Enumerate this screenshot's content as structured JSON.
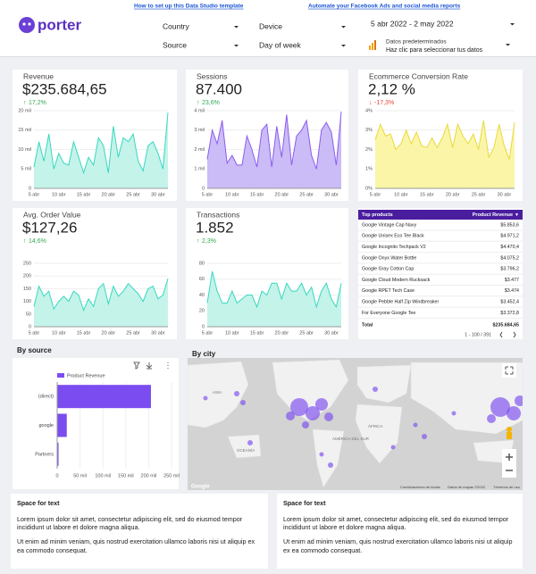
{
  "header": {
    "logo": "porter",
    "links": [
      "How to set up this Data Studio template",
      "Automate your Facebook Ads and social media reports"
    ],
    "filters": [
      "Country",
      "Device",
      "Source",
      "Day of week"
    ],
    "date_range": "5 abr 2022 - 2 may 2022",
    "data_source": [
      "Datos predeterminados",
      "Haz clic para seleccionar tus datos"
    ]
  },
  "chart_data": [
    {
      "type": "line",
      "title": "Revenue",
      "kpi": "$235.684,65",
      "delta": "17,2%",
      "delta_direction": "up",
      "color": "#35d9bf",
      "fill": "#c4f3ea",
      "categories": [
        "5 abr",
        null,
        null,
        null,
        null,
        "10 abr",
        null,
        null,
        null,
        null,
        "15 abr",
        null,
        null,
        null,
        null,
        "20 abr",
        null,
        null,
        null,
        null,
        "25 abr",
        null,
        null,
        null,
        null,
        "30 abr",
        null,
        null
      ],
      "values": [
        5500,
        12000,
        7000,
        14000,
        5000,
        9000,
        6500,
        6000,
        12000,
        8000,
        4000,
        8000,
        6000,
        13000,
        11000,
        4000,
        16000,
        8000,
        13000,
        12000,
        14000,
        7000,
        4500,
        11000,
        12000,
        9000,
        5000,
        19500
      ],
      "ylim": [
        0,
        20000
      ],
      "yticks": [
        0,
        {
          "value": 5000,
          "label": "5 mil"
        },
        {
          "value": 10000,
          "label": "10 mil"
        },
        {
          "value": 15000,
          "label": "15 mil"
        },
        {
          "value": 20000,
          "label": "20 mil"
        }
      ]
    },
    {
      "type": "line",
      "title": "Sessions",
      "kpi": "87.400",
      "delta": "23,6%",
      "delta_direction": "up",
      "color": "#8a5cf0",
      "fill": "#cbbbf6",
      "categories": [
        "5 abr",
        null,
        null,
        null,
        null,
        "10 abr",
        null,
        null,
        null,
        null,
        "15 abr",
        null,
        null,
        null,
        null,
        "20 abr",
        null,
        null,
        null,
        null,
        "25 abr",
        null,
        null,
        null,
        null,
        "30 abr",
        null,
        null
      ],
      "values": [
        1500,
        3000,
        2300,
        3500,
        1300,
        1700,
        1200,
        1200,
        2700,
        2000,
        1100,
        3000,
        3300,
        1100,
        3200,
        1600,
        3800,
        1200,
        2700,
        3000,
        3500,
        1700,
        1000,
        3000,
        3400,
        2900,
        1200,
        3950
      ],
      "ylim": [
        0,
        4000
      ],
      "yticks": [
        0,
        {
          "value": 1000,
          "label": "1 mil"
        },
        {
          "value": 2000,
          "label": "2 mil"
        },
        {
          "value": 3000,
          "label": "3 mil"
        },
        {
          "value": 4000,
          "label": "4 mil"
        }
      ]
    },
    {
      "type": "line",
      "title": "Ecommerce Conversion Rate",
      "kpi": "2,12 %",
      "delta": "-17,3%",
      "delta_direction": "down",
      "color": "#e8d93a",
      "fill": "#fbf5a8",
      "categories": [
        "5 abr",
        null,
        null,
        null,
        null,
        "10 abr",
        null,
        null,
        null,
        null,
        "15 abr",
        null,
        null,
        null,
        null,
        "20 abr",
        null,
        null,
        null,
        null,
        "25 abr",
        null,
        null,
        null,
        null,
        "30 abr",
        null,
        null
      ],
      "values": [
        2.5,
        3.3,
        2.7,
        2.8,
        2.0,
        2.3,
        3.0,
        2.3,
        2.9,
        2.2,
        2.1,
        2.6,
        2.1,
        2.6,
        3.3,
        2.1,
        3.3,
        2.7,
        2.3,
        2.8,
        2.0,
        3.5,
        1.6,
        2.1,
        3.3,
        2.2,
        1.5,
        3.4
      ],
      "ylim": [
        0,
        4
      ],
      "yticks": [
        {
          "value": 0,
          "label": "0%"
        },
        {
          "value": 1,
          "label": "1%"
        },
        {
          "value": 2,
          "label": "2%"
        },
        {
          "value": 3,
          "label": "3%"
        },
        {
          "value": 4,
          "label": "4%"
        }
      ]
    },
    {
      "type": "line",
      "title": "Avg. Order Value",
      "kpi": "$127,26",
      "delta": "14,6%",
      "delta_direction": "up",
      "color": "#35d9bf",
      "fill": "#c4f3ea",
      "categories": [
        "5 abr",
        null,
        null,
        null,
        null,
        "10 abr",
        null,
        null,
        null,
        null,
        "15 abr",
        null,
        null,
        null,
        null,
        "20 abr",
        null,
        null,
        null,
        null,
        "25 abr",
        null,
        null,
        null,
        null,
        "30 abr",
        null,
        null
      ],
      "values": [
        80,
        160,
        120,
        140,
        70,
        100,
        120,
        100,
        140,
        125,
        65,
        110,
        80,
        150,
        170,
        90,
        160,
        120,
        140,
        170,
        150,
        130,
        100,
        150,
        160,
        110,
        125,
        190
      ],
      "ylim": [
        0,
        250
      ],
      "yticks": [
        0,
        50,
        100,
        150,
        200,
        250
      ]
    },
    {
      "type": "line",
      "title": "Transactions",
      "kpi": "1.852",
      "delta": "2,3%",
      "delta_direction": "up",
      "color": "#35d9bf",
      "fill": "#c4f3ea",
      "categories": [
        "5 abr",
        null,
        null,
        null,
        null,
        "10 abr",
        null,
        null,
        null,
        null,
        "15 abr",
        null,
        null,
        null,
        null,
        "20 abr",
        null,
        null,
        null,
        null,
        "25 abr",
        null,
        null,
        null,
        null,
        "30 abr",
        null,
        null
      ],
      "values": [
        30,
        70,
        45,
        30,
        30,
        45,
        30,
        35,
        40,
        40,
        25,
        45,
        40,
        55,
        55,
        35,
        55,
        45,
        45,
        55,
        40,
        50,
        25,
        45,
        55,
        35,
        25,
        55
      ],
      "ylim": [
        0,
        80
      ],
      "yticks": [
        0,
        20,
        40,
        60,
        80
      ]
    },
    {
      "type": "bar",
      "title": "By source",
      "categories": [
        "(direct)",
        "google",
        "Partners"
      ],
      "series": [
        {
          "name": "Product Revenue",
          "color": "#7b4cf0",
          "values": [
            205000,
            21000,
            3000
          ]
        }
      ],
      "xlim": [
        0,
        250000
      ],
      "xticks": [
        0,
        {
          "value": 50000,
          "label": "50 mil"
        },
        {
          "value": 100000,
          "label": "100 mil"
        },
        {
          "value": 150000,
          "label": "150 mil"
        },
        {
          "value": 200000,
          "label": "200 mil"
        },
        {
          "value": 250000,
          "label": "250 mil"
        }
      ],
      "grid": true
    }
  ],
  "table": {
    "headers": [
      "Top products",
      "Product Revenue"
    ],
    "rows": [
      [
        "Google Vintage Cap Navy",
        "$5.853,6"
      ],
      [
        "Google Unisex Eco Tee Black",
        "$4.971,2"
      ],
      [
        "Google Incognito Techpack V2",
        "$4.470,4"
      ],
      [
        "Google Onyx Water Bottle",
        "$4.075,2"
      ],
      [
        "Google Gray Cotton Cap",
        "$3.796,2"
      ],
      [
        "Google Cloud Modern Rucksack",
        "$3.477"
      ],
      [
        "Google RPET Tech Case",
        "$3.474"
      ],
      [
        "Google Pebble Half Zip Windbreaker",
        "$3.452,4"
      ],
      [
        "For Everyone Google Tee",
        "$3.372,8"
      ]
    ],
    "total": [
      "Total",
      "$235.684,65"
    ],
    "pagination": "1 - 100 / 391"
  },
  "map": {
    "title": "By city",
    "labels": [
      "ASIA",
      "OCEANÍA",
      "AMÉRICA DEL SUR",
      "ÁFRICA"
    ],
    "attribution": [
      "Google",
      "Combinaciones de teclas",
      "Datos de mapas ©2022",
      "Términos de uso"
    ]
  },
  "text_boxes": [
    {
      "title": "Space for text",
      "paragraphs": [
        "Lorem ipsum dolor sit amet, consectetur adipiscing elit, sed do eiusmod tempor incididunt ut labore et dolore magna aliqua.",
        "Ut enim ad minim veniam, quis nostrud exercitation ullamco laboris nisi ut aliquip ex ea commodo consequat."
      ]
    },
    {
      "title": "Space for text",
      "paragraphs": [
        "Lorem ipsum dolor sit amet, consectetur adipiscing elit, sed do eiusmod tempor incididunt ut labore et dolore magna aliqua.",
        "Ut enim ad minim veniam, quis nostrud exercitation ullamco laboris nisi ut aliquip ex ea commodo consequat."
      ]
    }
  ]
}
